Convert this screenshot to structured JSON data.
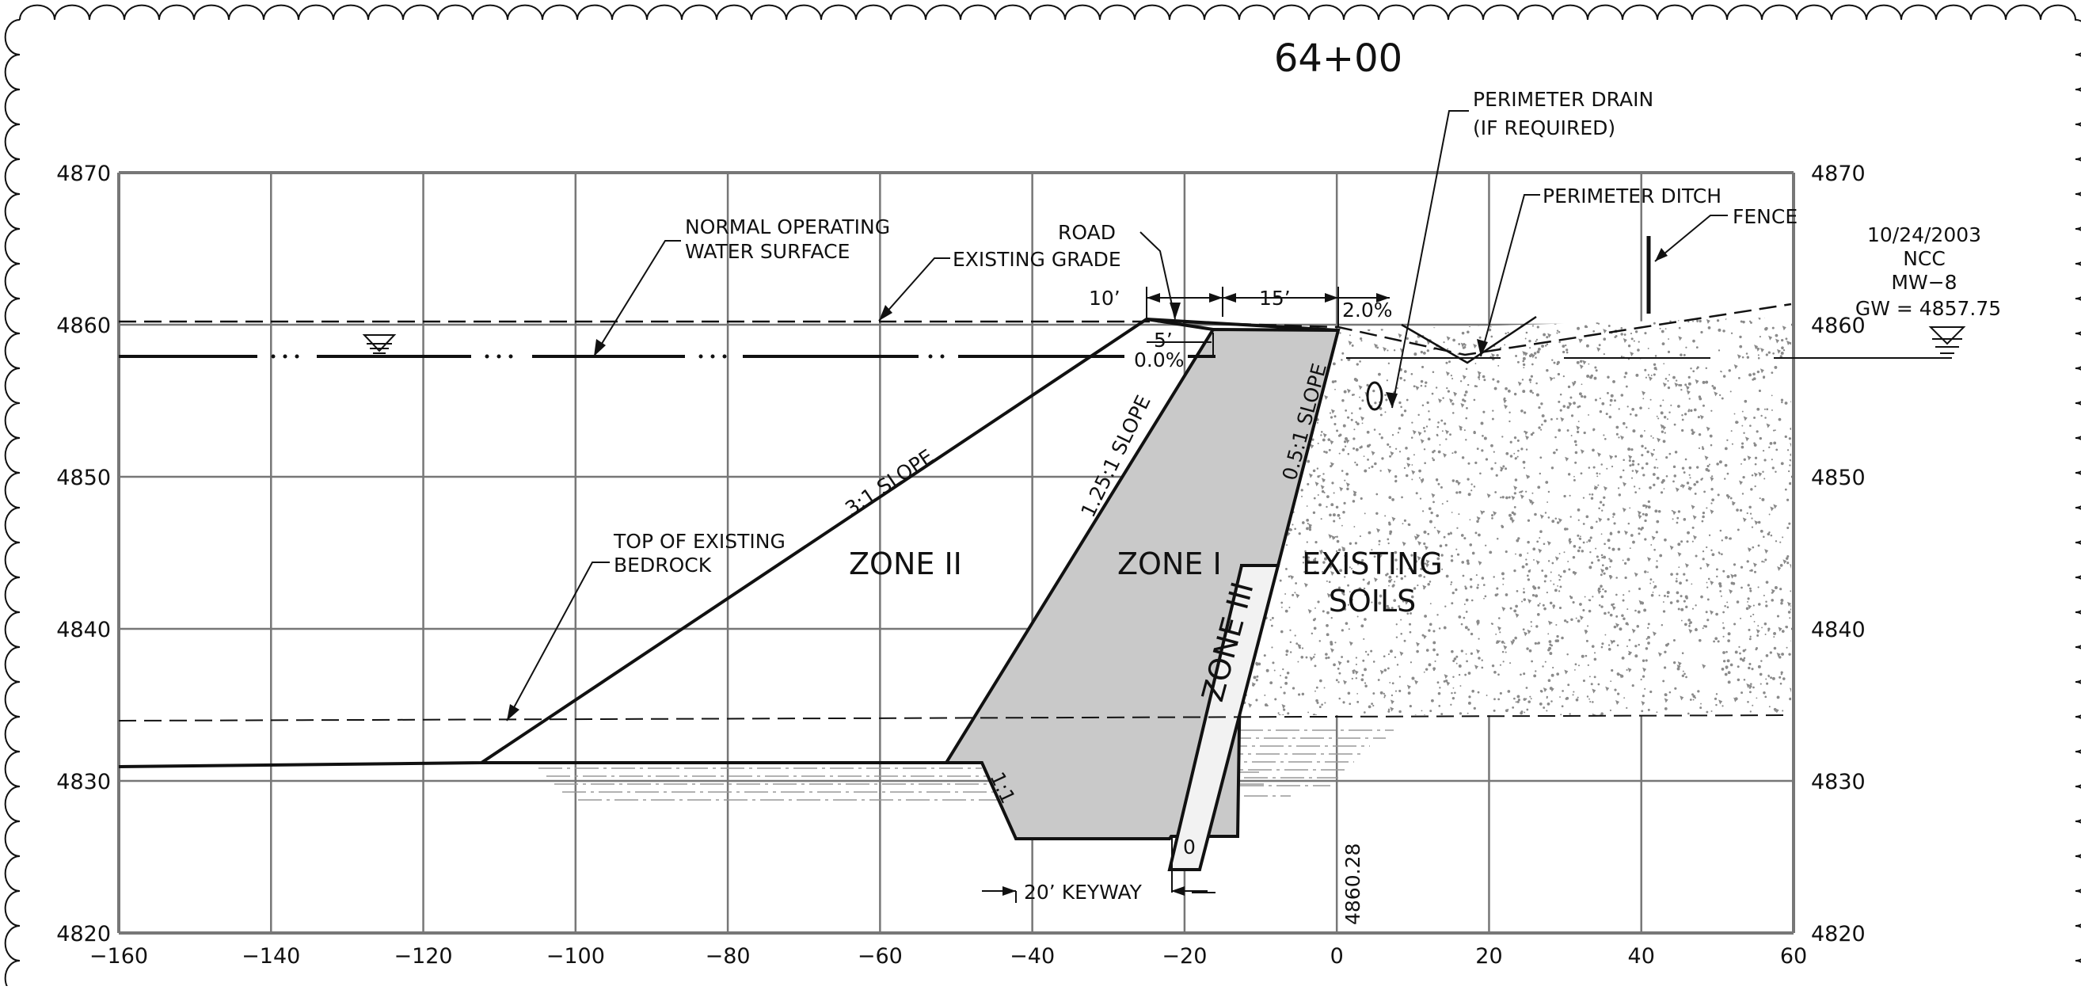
{
  "title": "64+00",
  "x_axis": {
    "min": -160,
    "max": 60,
    "step": 20,
    "tick_labels": [
      "−160",
      "−140",
      "−120",
      "−100",
      "−80",
      "−60",
      "−40",
      "−20",
      "0",
      "20",
      "40",
      "60"
    ]
  },
  "y_axis": {
    "min": 4820,
    "max": 4870,
    "step": 10,
    "tick_labels": [
      "4820",
      "4830",
      "4840",
      "4850",
      "4860",
      "4870"
    ]
  },
  "annotations": {
    "perimeter_drain_1": "PERIMETER DRAIN",
    "perimeter_drain_2": "(IF REQUIRED)",
    "perimeter_ditch": "PERIMETER DITCH",
    "fence": "FENCE",
    "normal_water_1": "NORMAL OPERATING",
    "normal_water_2": "WATER SURFACE",
    "existing_grade": "EXISTING GRADE",
    "road": "ROAD",
    "dim_10": "10’",
    "dim_15": "15’",
    "dim_5": "5’",
    "slope_2": "2.0%",
    "slope_0": "0.0%",
    "slope_3_1": "3:1 SLOPE",
    "slope_125_1": "1.25:1 SLOPE",
    "slope_05_1": "0.5:1 SLOPE",
    "top_bedrock_1": "TOP OF EXISTING",
    "top_bedrock_2": "BEDROCK",
    "zone_2": "ZONE II",
    "zone_1": "ZONE I",
    "zone_3": "ZONE III",
    "existing_soils_1": "EXISTING",
    "existing_soils_2": "SOILS",
    "keyway": "20’ KEYWAY",
    "slope_1_1": "1:1",
    "station_elev": "4860.28",
    "zero_mark": "0"
  },
  "monitoring_well": {
    "date": "10/24/2003",
    "org": "NCC",
    "well": "MW−8",
    "gw": "GW = 4857.75"
  },
  "colors": {
    "zone1_fill": "#c9c9c9",
    "line": "#111111",
    "grid": "#777777",
    "speckle": "#8a8a8a"
  }
}
